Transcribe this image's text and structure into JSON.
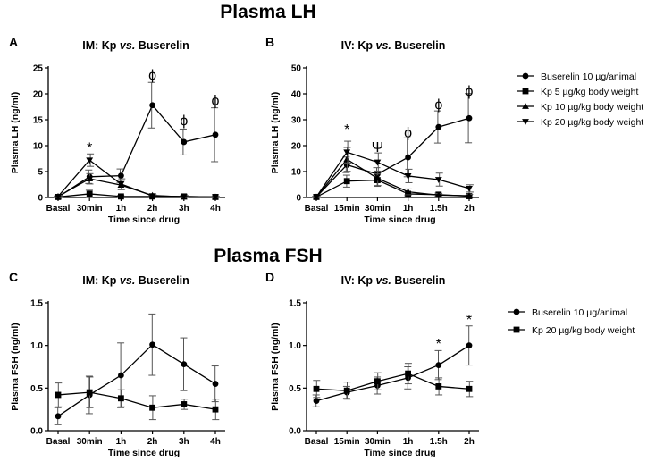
{
  "figure": {
    "section_titles": [
      "Plasma LH",
      "Plasma FSH"
    ]
  },
  "chart_data": [
    {
      "type": "line",
      "panel": "A",
      "title_prefix": "IM: Kp ",
      "title_italic": "vs.",
      "title_suffix": " Buserelin",
      "xlabel": "Time since drug",
      "ylabel": "Plasma LH (ng/ml)",
      "categories": [
        "Basal",
        "30min",
        "1h",
        "2h",
        "3h",
        "4h"
      ],
      "ylim": [
        0,
        25
      ],
      "yticks": [
        0,
        5,
        10,
        15,
        20,
        25
      ],
      "series": [
        {
          "name": "Buserelin 10 µg/animal",
          "marker": "circle",
          "values": [
            0.1,
            4.0,
            4.2,
            17.8,
            10.7,
            12.1
          ],
          "errors": [
            0.2,
            1.3,
            1.3,
            4.4,
            2.5,
            5.2
          ]
        },
        {
          "name": "Kp 5 µg/kg body weight",
          "marker": "square",
          "values": [
            0.1,
            0.7,
            0.2,
            0.2,
            0.2,
            0.1
          ],
          "errors": [
            0.1,
            0.7,
            0.2,
            0.2,
            0.2,
            0.1
          ]
        },
        {
          "name": "Kp 10 µg/kg body weight",
          "marker": "triangle-up",
          "values": [
            0.2,
            3.6,
            2.4,
            0.4,
            0.1,
            0.1
          ],
          "errors": [
            0.2,
            1.0,
            0.9,
            0.3,
            0.1,
            0.1
          ]
        },
        {
          "name": "Kp 20 µg/kg body weight",
          "marker": "triangle-down",
          "values": [
            0.2,
            7.2,
            2.6,
            0.3,
            0.2,
            0.1
          ],
          "errors": [
            0.2,
            1.2,
            1.0,
            0.2,
            0.2,
            0.1
          ]
        }
      ],
      "annotations": [
        {
          "text": "*",
          "category": "30min",
          "y": 9.7
        },
        {
          "text": "ϕ",
          "category": "2h",
          "y": 23.8
        },
        {
          "text": "ϕ",
          "category": "3h",
          "y": 15.0
        },
        {
          "text": "ϕ",
          "category": "4h",
          "y": 18.9
        }
      ]
    },
    {
      "type": "line",
      "panel": "B",
      "title_prefix": "IV: Kp ",
      "title_italic": "vs.",
      "title_suffix": " Buserelin",
      "xlabel": "Time since drug",
      "ylabel": "Plasma LH (ng/ml)",
      "categories": [
        "Basal",
        "15min",
        "30min",
        "1h",
        "1.5h",
        "2h"
      ],
      "ylim": [
        0,
        50
      ],
      "yticks": [
        0,
        10,
        20,
        30,
        40,
        50
      ],
      "legend_position": "right",
      "series": [
        {
          "name": "Buserelin 10 µg/animal",
          "marker": "circle",
          "values": [
            0.2,
            12.6,
            9.0,
            15.5,
            27.2,
            30.6
          ],
          "errors": [
            0.2,
            3.0,
            2.5,
            7.5,
            6.2,
            9.5
          ]
        },
        {
          "name": "Kp 5 µg/kg body weight",
          "marker": "square",
          "values": [
            0.2,
            6.3,
            6.7,
            1.4,
            1.1,
            0.5
          ],
          "errors": [
            0.2,
            2.3,
            2.4,
            0.7,
            0.6,
            0.4
          ]
        },
        {
          "name": "Kp 10 µg/kg body weight",
          "marker": "triangle-up",
          "values": [
            0.2,
            14.7,
            7.4,
            2.2,
            0.9,
            0.7
          ],
          "errors": [
            0.2,
            4.6,
            2.8,
            1.1,
            0.6,
            0.5
          ]
        },
        {
          "name": "Kp 20 µg/kg body weight",
          "marker": "triangle-down",
          "values": [
            0.2,
            17.5,
            13.6,
            8.3,
            6.9,
            3.5
          ],
          "errors": [
            0.2,
            4.2,
            3.6,
            2.6,
            2.5,
            1.4
          ]
        }
      ],
      "annotations": [
        {
          "text": "*",
          "category": "15min",
          "y": 26.5
        },
        {
          "text": "Ψ",
          "category": "30min",
          "y": 19.6
        },
        {
          "text": "ϕ",
          "category": "1h",
          "y": 25.4
        },
        {
          "text": "ϕ",
          "category": "1.5h",
          "y": 36.2
        },
        {
          "text": "ϕ",
          "category": "2h",
          "y": 41.3
        }
      ]
    },
    {
      "type": "line",
      "panel": "C",
      "title_prefix": "IM: Kp ",
      "title_italic": "vs.",
      "title_suffix": " Buserelin",
      "xlabel": "Time since drug",
      "ylabel": "Plasma FSH (ng/ml)",
      "categories": [
        "Basal",
        "30min",
        "1h",
        "2h",
        "3h",
        "4h"
      ],
      "ylim": [
        0,
        1.5
      ],
      "yticks": [
        0.0,
        0.5,
        1.0,
        1.5
      ],
      "series": [
        {
          "name": "Buserelin 10 µg/animal",
          "marker": "circle",
          "values": [
            0.17,
            0.42,
            0.65,
            1.01,
            0.78,
            0.55
          ],
          "errors": [
            0.1,
            0.22,
            0.38,
            0.36,
            0.31,
            0.21
          ]
        },
        {
          "name": "Kp 20 µg/kg body weight",
          "marker": "square",
          "values": [
            0.42,
            0.45,
            0.38,
            0.27,
            0.31,
            0.25
          ],
          "errors": [
            0.14,
            0.18,
            0.1,
            0.14,
            0.06,
            0.12
          ]
        }
      ],
      "annotations": []
    },
    {
      "type": "line",
      "panel": "D",
      "title_prefix": "IV: Kp ",
      "title_italic": "vs.",
      "title_suffix": " Buserelin",
      "xlabel": "Time since drug",
      "ylabel": "Plasma FSH (ng/ml)",
      "categories": [
        "Basal",
        "15min",
        "30min",
        "1h",
        "1.5h",
        "2h"
      ],
      "ylim": [
        0,
        1.5
      ],
      "yticks": [
        0.0,
        0.5,
        1.0,
        1.5
      ],
      "legend_position": "right",
      "series": [
        {
          "name": "Buserelin 10 µg/animal",
          "marker": "circle",
          "values": [
            0.35,
            0.45,
            0.53,
            0.62,
            0.77,
            1.0
          ],
          "errors": [
            0.07,
            0.07,
            0.1,
            0.13,
            0.17,
            0.23
          ]
        },
        {
          "name": "Kp 20 µg/kg body weight",
          "marker": "square",
          "values": [
            0.49,
            0.47,
            0.58,
            0.67,
            0.52,
            0.49
          ],
          "errors": [
            0.1,
            0.1,
            0.1,
            0.12,
            0.1,
            0.09
          ]
        }
      ],
      "annotations": [
        {
          "text": "*",
          "category": "1.5h",
          "y": 1.03
        },
        {
          "text": "*",
          "category": "2h",
          "y": 1.31
        }
      ]
    }
  ]
}
